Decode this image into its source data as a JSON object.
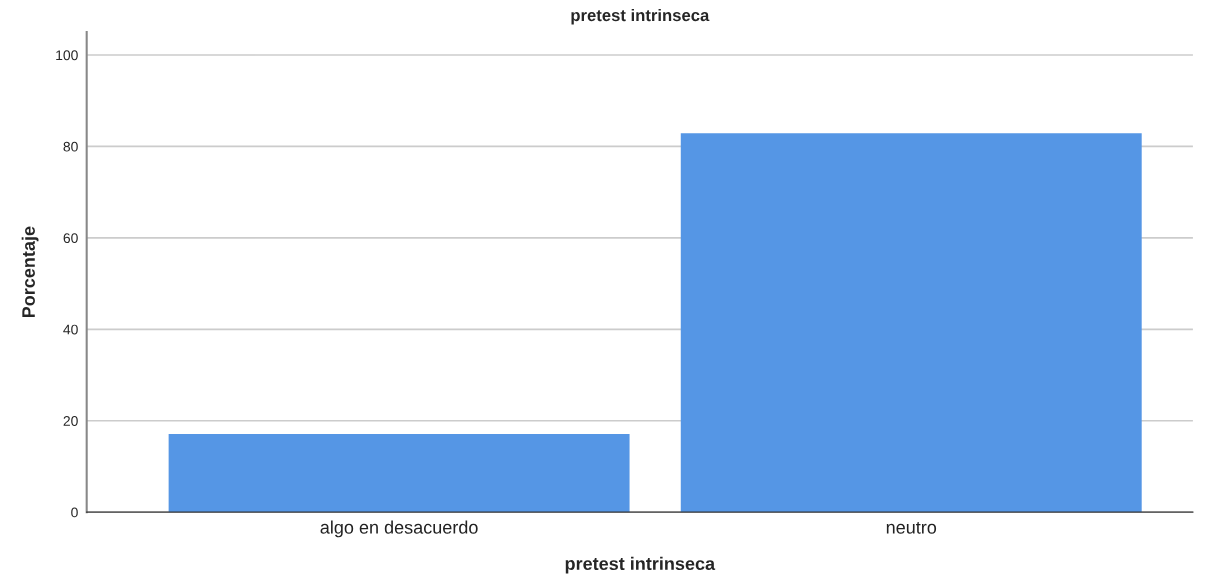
{
  "chart_data": {
    "type": "bar",
    "title": "pretest intrinseca",
    "xlabel": "pretest intrinseca",
    "ylabel": "Porcentaje",
    "categories": [
      "algo en desacuerdo",
      "neutro"
    ],
    "values": [
      17.1,
      82.9
    ],
    "color": "#5596e5",
    "ylim": [
      0,
      105
    ],
    "yticks": [
      0,
      20,
      40,
      60,
      80,
      100
    ],
    "grid": "y"
  }
}
